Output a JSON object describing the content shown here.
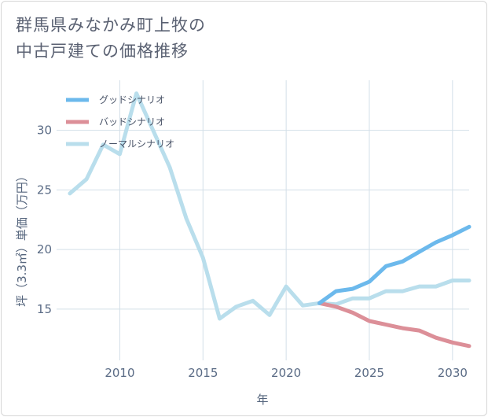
{
  "title_line1": "群馬県みなかみ町上牧の",
  "title_line2": "中古戸建ての価格推移",
  "chart_data": {
    "type": "line",
    "xlabel": "年",
    "ylabel": "坪（3.3㎡）単価（万円）",
    "xlim": [
      2006.2,
      2031
    ],
    "ylim": [
      10.7,
      34.2
    ],
    "xticks": [
      2010,
      2015,
      2020,
      2025,
      2030
    ],
    "yticks": [
      15,
      20,
      25,
      30
    ],
    "legend_position": "top-left",
    "series": [
      {
        "name": "グッドシナリオ",
        "color": "#6cb9ec",
        "x": [
          2022,
          2023,
          2024,
          2025,
          2026,
          2027,
          2028,
          2029,
          2030,
          2031
        ],
        "values": [
          15.5,
          16.5,
          16.7,
          17.3,
          18.6,
          19.0,
          19.8,
          20.6,
          21.2,
          21.9
        ]
      },
      {
        "name": "バッドシナリオ",
        "color": "#dc8f98",
        "x": [
          2022,
          2023,
          2024,
          2025,
          2026,
          2027,
          2028,
          2029,
          2030,
          2031
        ],
        "values": [
          15.5,
          15.2,
          14.7,
          14.0,
          13.7,
          13.4,
          13.2,
          12.6,
          12.2,
          11.9
        ]
      },
      {
        "name": "ノーマルシナリオ",
        "color": "#b9deec",
        "x": [
          2007,
          2008,
          2009,
          2010,
          2011,
          2012,
          2013,
          2014,
          2015,
          2016,
          2017,
          2018,
          2019,
          2020,
          2021,
          2022,
          2023,
          2024,
          2025,
          2026,
          2027,
          2028,
          2029,
          2030,
          2031
        ],
        "values": [
          24.7,
          25.9,
          28.8,
          28.0,
          33.1,
          30.0,
          26.9,
          22.6,
          19.3,
          14.2,
          15.2,
          15.7,
          14.5,
          16.9,
          15.3,
          15.5,
          15.4,
          15.9,
          15.9,
          16.5,
          16.5,
          16.9,
          16.9,
          17.4,
          17.4
        ]
      }
    ]
  }
}
